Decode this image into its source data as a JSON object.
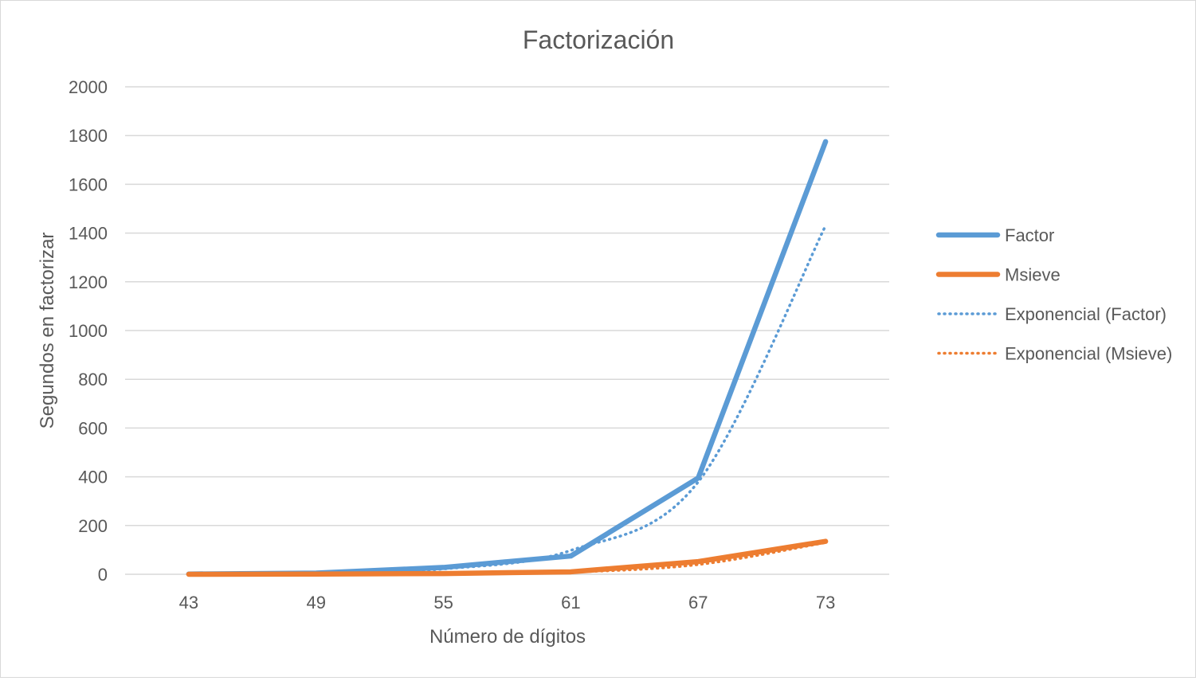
{
  "chart_data": {
    "type": "line",
    "title": "Factorización",
    "xlabel": "Número de dígitos",
    "ylabel": "Segundos en factorizar",
    "categories": [
      "43",
      "49",
      "55",
      "61",
      "67",
      "73"
    ],
    "ylim": [
      0,
      2000
    ],
    "yticks": [
      "0",
      "200",
      "400",
      "600",
      "800",
      "1000",
      "1200",
      "1400",
      "1600",
      "1800",
      "2000"
    ],
    "grid": true,
    "legend_position": "right",
    "series": [
      {
        "name": "Factor",
        "values": [
          1,
          5,
          28,
          75,
          395,
          1775
        ],
        "color": "#5b9bd5",
        "style": "solid"
      },
      {
        "name": "Msieve",
        "values": [
          0,
          1,
          3,
          10,
          52,
          135
        ],
        "color": "#ed7d31",
        "style": "solid"
      },
      {
        "name": "Exponencial (Factor)",
        "values": [
          1.1,
          4.9,
          22,
          98,
          379,
          1430
        ],
        "color": "#5b9bd5",
        "style": "dotted"
      },
      {
        "name": "Exponencial (Msieve)",
        "values": [
          0.1,
          0.5,
          2.5,
          9,
          40,
          130
        ],
        "color": "#ed7d31",
        "style": "dotted"
      }
    ]
  }
}
